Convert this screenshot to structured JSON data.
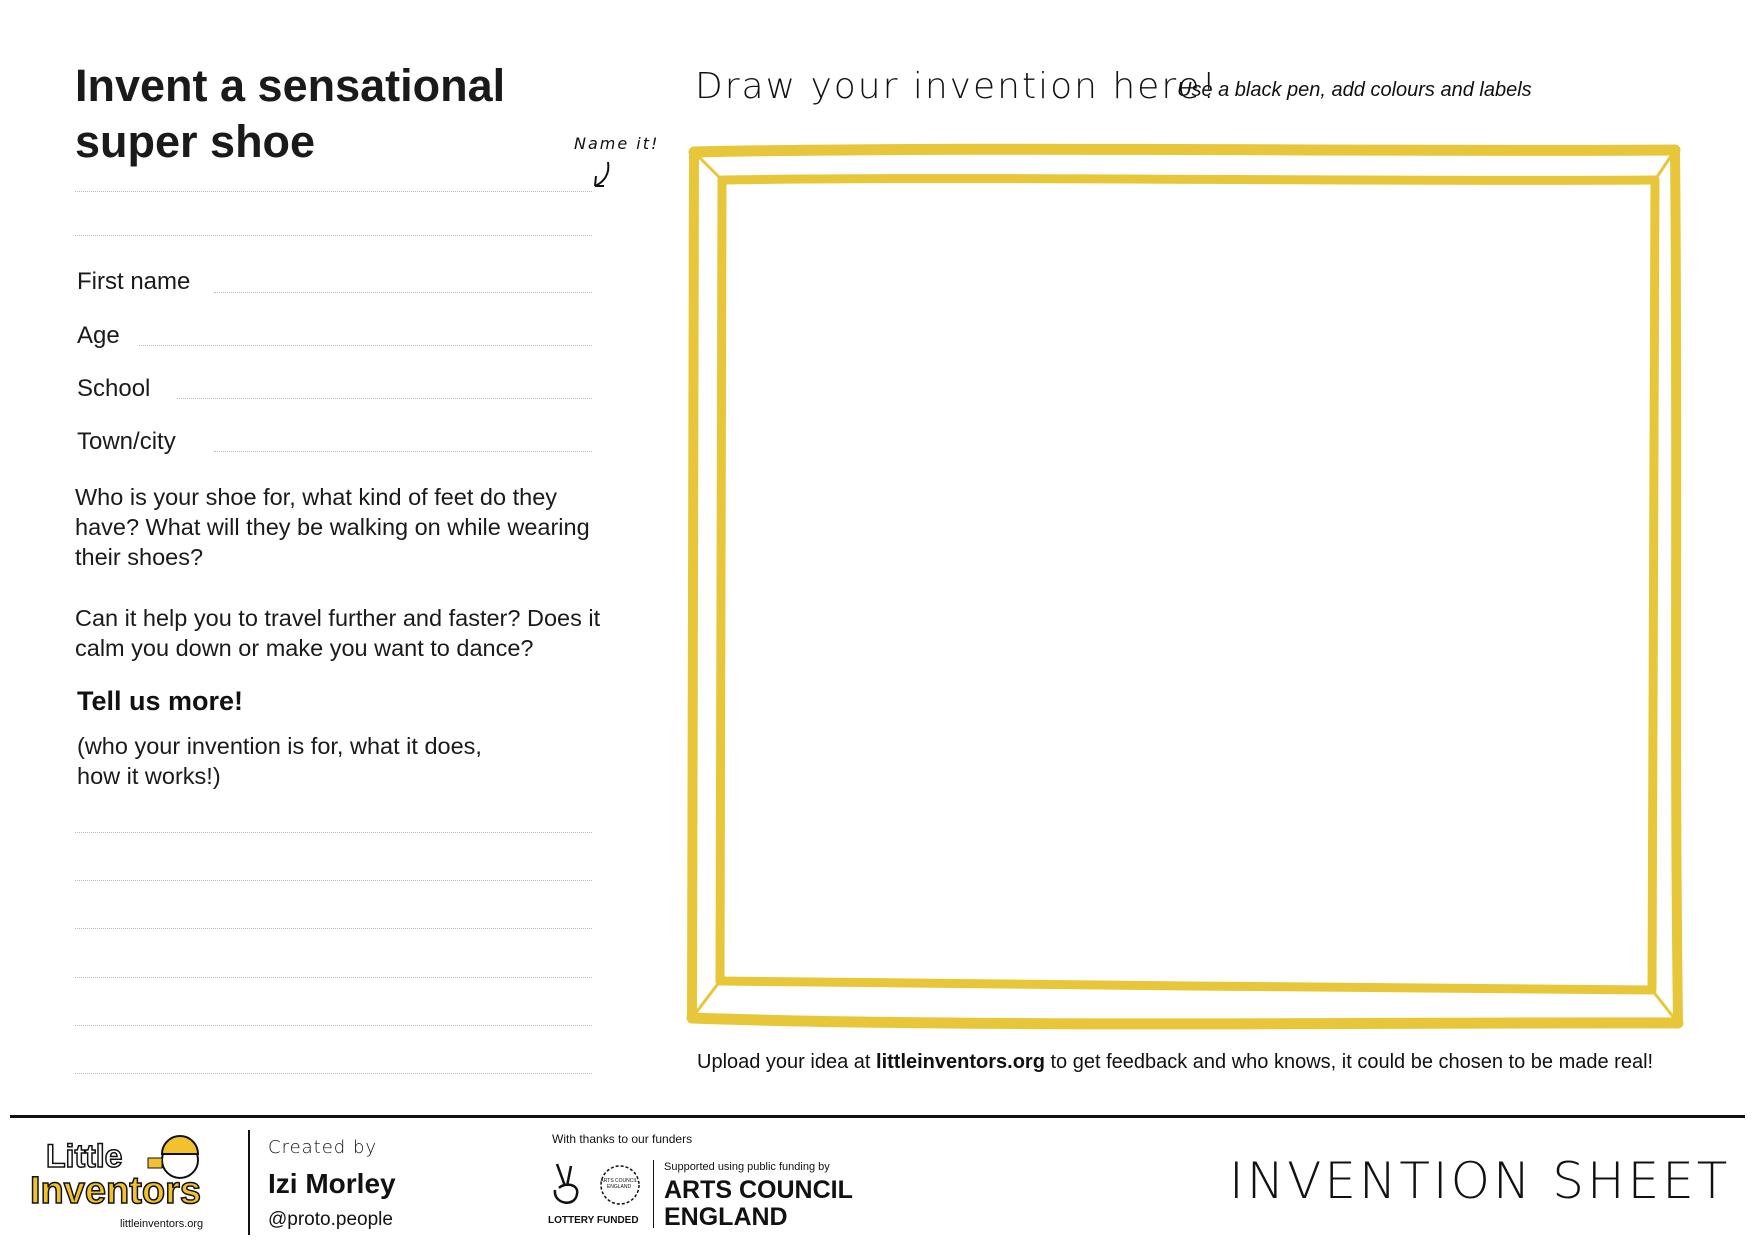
{
  "title": "Invent a sensational super shoe",
  "name_hint": "Name it!",
  "fields": [
    {
      "label": "First name"
    },
    {
      "label": "Age"
    },
    {
      "label": "School"
    },
    {
      "label": "Town/city"
    }
  ],
  "question1": "Who is your shoe for, what kind of feet do they have? What will they be walking on while wearing their shoes?",
  "question2": "Can it help you to travel further and faster? Does it calm you down or make you want to dance?",
  "tell_more": "Tell us more!",
  "tell_more_hint": "(who your invention is for, what it does, how it works!)",
  "draw_title": "Draw your invention here!",
  "draw_hint": "Use a black pen, add colours and labels",
  "upload": {
    "before": "Upload your idea at ",
    "link": "littleinventors.org",
    "after": " to get feedback and who knows, it could be chosen to be made real!"
  },
  "footer": {
    "logo_line1": "Little",
    "logo_line2": "Inventors",
    "logo_url": "littleinventors.org",
    "created_by": "Created by",
    "author": "Izi Morley",
    "handle": "@proto.people",
    "thanks": "With thanks to our funders",
    "lottery": "LOTTERY FUNDED",
    "ace_small": "ARTS COUNCIL ENGLAND",
    "supported": "Supported using public funding by",
    "ace_line1": "ARTS COUNCIL",
    "ace_line2": "ENGLAND",
    "sheet": "INVENTION SHEET"
  },
  "colors": {
    "frame": "#e8c63a",
    "text": "#1a1a1a"
  }
}
